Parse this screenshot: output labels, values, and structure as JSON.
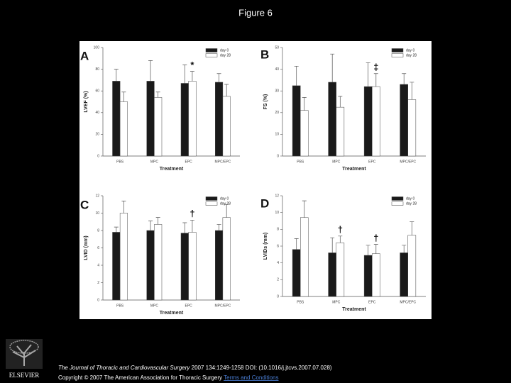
{
  "header": {
    "title": "Figure 6"
  },
  "chart_data": [
    {
      "type": "bar",
      "panel_label": "A",
      "ylabel": "LVEF (%)",
      "xlabel": "Treatment",
      "annotation": "*",
      "categories": [
        "PBS",
        "MPC",
        "EPC",
        "MPC/EPC"
      ],
      "series": [
        {
          "name": "day 0",
          "color": "#1a1a1a",
          "values": [
            69,
            69,
            67,
            68
          ],
          "errors": [
            11,
            19,
            17,
            8
          ]
        },
        {
          "name": "day 28",
          "color": "#ffffff",
          "values": [
            50,
            54,
            69,
            55
          ],
          "errors": [
            9,
            5,
            9,
            11
          ]
        }
      ],
      "ylim": [
        0,
        100
      ],
      "yticks": [
        0,
        20,
        40,
        60,
        80,
        100
      ]
    },
    {
      "type": "bar",
      "panel_label": "B",
      "ylabel": "FS (%)",
      "xlabel": "Treatment",
      "annotation": "‡",
      "categories": [
        "PBS",
        "MPC",
        "EPC",
        "MPC/EPC"
      ],
      "series": [
        {
          "name": "day 0",
          "color": "#1a1a1a",
          "values": [
            32.4,
            34,
            32,
            33
          ],
          "errors": [
            9,
            13,
            11,
            5
          ]
        },
        {
          "name": "day 28",
          "color": "#ffffff",
          "values": [
            21,
            22.5,
            32,
            26
          ],
          "errors": [
            6,
            5,
            6,
            8
          ]
        }
      ],
      "ylim": [
        0,
        50
      ],
      "yticks": [
        0,
        10,
        20,
        30,
        40,
        50
      ]
    },
    {
      "type": "bar",
      "panel_label": "C",
      "ylabel": "LVID (mm)",
      "xlabel": "Treatment",
      "annotation": "†",
      "categories": [
        "PBS",
        "MPC",
        "EPC",
        "MPC/EPC"
      ],
      "series": [
        {
          "name": "day 0",
          "color": "#1a1a1a",
          "values": [
            7.8,
            8.0,
            7.7,
            8.0
          ],
          "errors": [
            0.6,
            1.1,
            1.2,
            0.7
          ]
        },
        {
          "name": "day 28",
          "color": "#ffffff",
          "values": [
            10,
            8.7,
            7.8,
            9.5
          ],
          "errors": [
            1.4,
            0.8,
            1.4,
            1.5
          ]
        }
      ],
      "ylim": [
        0,
        12
      ],
      "yticks": [
        0,
        2,
        4,
        6,
        8,
        10,
        12
      ]
    },
    {
      "type": "bar",
      "panel_label": "D",
      "ylabel": "LVIDs (mm)",
      "xlabel": "Treatment",
      "annotations": [
        "†",
        "†"
      ],
      "categories": [
        "PBS",
        "MPC",
        "EPC",
        "MPC/EPC"
      ],
      "series": [
        {
          "name": "day 0",
          "color": "#1a1a1a",
          "values": [
            5.6,
            5.2,
            4.9,
            5.2
          ],
          "errors": [
            1.3,
            1.8,
            1.2,
            0.9
          ]
        },
        {
          "name": "day 28",
          "color": "#ffffff",
          "values": [
            9.4,
            6.4,
            5.1,
            7.3
          ],
          "errors": [
            2,
            0.8,
            1.1,
            1.6
          ]
        }
      ],
      "ylim": [
        0,
        12
      ],
      "yticks": [
        0,
        2,
        4,
        6,
        8,
        10,
        12
      ]
    }
  ],
  "logo": {
    "text": "ELSEVIER"
  },
  "footer": {
    "journal": "The Journal of Thoracic and Cardiovascular Surgery",
    "citation": " 2007 134:1249-1258 DOI: (10.1016/j.jtcvs.2007.07.028)",
    "copyright": "Copyright © 2007 The American Association for Thoracic Surgery ",
    "terms": "Terms and Conditions"
  }
}
